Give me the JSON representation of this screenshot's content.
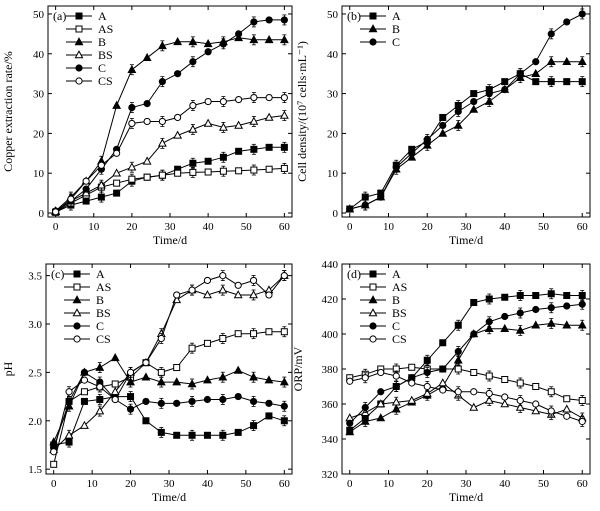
{
  "chart_data": [
    {
      "type": "line",
      "panel_label": "(a)",
      "xlabel": "Time/d",
      "ylabel": "Copper extraction rate/%",
      "xlim": [
        -2,
        62
      ],
      "ylim": [
        -1,
        52
      ],
      "xticks": [
        0,
        10,
        20,
        30,
        40,
        50,
        60
      ],
      "yticks": [
        0,
        10,
        20,
        30,
        40,
        50
      ],
      "grid": false,
      "legend": "top-left",
      "x": [
        0,
        4,
        8,
        12,
        16,
        20,
        24,
        28,
        32,
        36,
        40,
        44,
        48,
        52,
        56,
        60
      ],
      "series": [
        {
          "name": "A",
          "marker": "square-filled",
          "values": [
            0.2,
            2.0,
            3.0,
            4.0,
            5.0,
            8.0,
            9.0,
            9.5,
            11.0,
            12.5,
            13.0,
            14.0,
            15.5,
            16.0,
            16.5,
            16.5
          ]
        },
        {
          "name": "AS",
          "marker": "square-open",
          "values": [
            0.2,
            2.5,
            4.5,
            6.5,
            7.5,
            8.5,
            9.0,
            9.5,
            10.0,
            10.2,
            10.3,
            10.5,
            10.6,
            10.8,
            11.0,
            11.2
          ]
        },
        {
          "name": "B",
          "marker": "triangle-filled",
          "values": [
            0.5,
            4.0,
            8.0,
            13.0,
            27.0,
            36.0,
            39.0,
            42.0,
            43.0,
            43.0,
            42.5,
            43.0,
            44.0,
            43.5,
            43.5,
            43.5
          ]
        },
        {
          "name": "BS",
          "marker": "triangle-open",
          "values": [
            0.3,
            3.0,
            5.0,
            7.0,
            10.0,
            11.5,
            13.0,
            17.5,
            19.5,
            21.0,
            22.5,
            21.5,
            22.0,
            23.0,
            24.0,
            24.5
          ]
        },
        {
          "name": "C",
          "marker": "circle-filled",
          "values": [
            0.5,
            3.0,
            6.0,
            11.0,
            16.0,
            26.5,
            27.5,
            33.0,
            35.0,
            38.0,
            40.5,
            42.5,
            45.0,
            48.0,
            48.5,
            48.5
          ]
        },
        {
          "name": "CS",
          "marker": "circle-open",
          "values": [
            0.3,
            3.5,
            8.0,
            12.0,
            15.0,
            22.5,
            23.0,
            23.0,
            24.0,
            27.0,
            28.0,
            28.0,
            28.5,
            29.0,
            29.0,
            29.0
          ]
        }
      ]
    },
    {
      "type": "line",
      "panel_label": "(b)",
      "xlabel": "Time/d",
      "ylabel": "Cell density/(10⁷ cells·mL⁻¹)",
      "xlim": [
        -2,
        62
      ],
      "ylim": [
        -1,
        52
      ],
      "xticks": [
        0,
        10,
        20,
        30,
        40,
        50,
        60
      ],
      "yticks": [
        0,
        10,
        20,
        30,
        40,
        50
      ],
      "grid": false,
      "legend": "top-left",
      "x": [
        0,
        4,
        8,
        12,
        16,
        20,
        24,
        28,
        32,
        36,
        40,
        44,
        48,
        52,
        56,
        60
      ],
      "series": [
        {
          "name": "A",
          "marker": "square-filled",
          "values": [
            1.0,
            4.0,
            5.0,
            12.0,
            16.0,
            18.0,
            24.0,
            27.0,
            30.0,
            31.0,
            33.0,
            35.0,
            33.0,
            33.0,
            33.0,
            33.0
          ]
        },
        {
          "name": "B",
          "marker": "triangle-filled",
          "values": [
            1.0,
            2.0,
            4.0,
            11.0,
            14.0,
            17.0,
            20.0,
            22.0,
            26.0,
            28.0,
            31.0,
            34.0,
            35.0,
            38.0,
            38.0,
            38.0
          ]
        },
        {
          "name": "C",
          "marker": "circle-filled",
          "values": [
            1.0,
            2.0,
            4.0,
            11.5,
            15.0,
            18.5,
            22.0,
            25.5,
            28.0,
            30.0,
            31.0,
            35.0,
            38.0,
            45.0,
            48.0,
            50.0
          ]
        }
      ]
    },
    {
      "type": "line",
      "panel_label": "(c)",
      "xlabel": "Time/d",
      "ylabel": "pH",
      "xlim": [
        -2,
        62
      ],
      "ylim": [
        1.45,
        3.62
      ],
      "xticks": [
        0,
        10,
        20,
        30,
        40,
        50,
        60
      ],
      "yticks": [
        1.5,
        2.0,
        2.5,
        3.0,
        3.5
      ],
      "ytick_labels": [
        "1.5",
        "2.0",
        "2.5",
        "3.0",
        "3.5"
      ],
      "grid": false,
      "legend": "top-left",
      "x": [
        0,
        4,
        8,
        12,
        16,
        20,
        24,
        28,
        32,
        36,
        40,
        44,
        48,
        52,
        56,
        60
      ],
      "series": [
        {
          "name": "A",
          "marker": "square-filled",
          "values": [
            1.75,
            1.78,
            2.2,
            2.22,
            2.25,
            2.25,
            2.0,
            1.88,
            1.85,
            1.85,
            1.85,
            1.85,
            1.88,
            1.95,
            2.05,
            2.0
          ]
        },
        {
          "name": "AS",
          "marker": "square-open",
          "values": [
            1.55,
            2.2,
            2.3,
            2.35,
            2.38,
            2.45,
            2.6,
            2.5,
            2.55,
            2.75,
            2.8,
            2.85,
            2.9,
            2.9,
            2.92,
            2.92
          ]
        },
        {
          "name": "B",
          "marker": "triangle-filled",
          "values": [
            1.78,
            2.15,
            2.5,
            2.55,
            2.65,
            2.4,
            2.45,
            2.4,
            2.4,
            2.38,
            2.42,
            2.45,
            2.52,
            2.45,
            2.42,
            2.4
          ]
        },
        {
          "name": "BS",
          "marker": "triangle-open",
          "values": [
            1.7,
            1.85,
            1.95,
            2.1,
            2.3,
            2.5,
            2.6,
            2.9,
            3.25,
            3.35,
            3.3,
            3.35,
            3.3,
            3.3,
            3.35,
            3.5
          ]
        },
        {
          "name": "C",
          "marker": "circle-filled",
          "values": [
            1.72,
            2.2,
            2.5,
            2.4,
            2.22,
            2.12,
            2.2,
            2.18,
            2.18,
            2.2,
            2.22,
            2.22,
            2.25,
            2.2,
            2.18,
            2.15
          ]
        },
        {
          "name": "CS",
          "marker": "circle-open",
          "values": [
            1.68,
            2.3,
            2.42,
            2.35,
            2.22,
            2.5,
            2.6,
            2.85,
            3.3,
            3.35,
            3.45,
            3.5,
            3.4,
            3.45,
            3.3,
            3.5
          ]
        }
      ]
    },
    {
      "type": "line",
      "panel_label": "(d)",
      "xlabel": "Time/d",
      "ylabel": "ORP/mV",
      "xlim": [
        -2,
        62
      ],
      "ylim": [
        320,
        440
      ],
      "xticks": [
        0,
        10,
        20,
        30,
        40,
        50,
        60
      ],
      "yticks": [
        320,
        340,
        360,
        380,
        400,
        420,
        440
      ],
      "grid": false,
      "legend": "top-left",
      "x": [
        0,
        4,
        8,
        12,
        16,
        20,
        24,
        28,
        32,
        36,
        40,
        44,
        48,
        52,
        56,
        60
      ],
      "series": [
        {
          "name": "A",
          "marker": "square-filled",
          "values": [
            345,
            352,
            360,
            370,
            375,
            385,
            395,
            405,
            418,
            420,
            421,
            422,
            422,
            423,
            422,
            422
          ]
        },
        {
          "name": "AS",
          "marker": "square-open",
          "values": [
            375,
            377,
            380,
            380,
            381,
            380,
            380,
            380,
            378,
            376,
            374,
            372,
            370,
            367,
            363,
            362
          ]
        },
        {
          "name": "B",
          "marker": "triangle-filled",
          "values": [
            344,
            350,
            352,
            357,
            361,
            365,
            370,
            385,
            400,
            403,
            403,
            402,
            405,
            406,
            405,
            405
          ]
        },
        {
          "name": "BS",
          "marker": "triangle-open",
          "values": [
            352,
            355,
            360,
            361,
            362,
            366,
            372,
            365,
            358,
            362,
            360,
            358,
            356,
            354,
            357,
            352
          ]
        },
        {
          "name": "C",
          "marker": "circle-filled",
          "values": [
            349,
            358,
            367,
            370,
            375,
            378,
            380,
            390,
            400,
            407,
            410,
            412,
            414,
            415,
            416,
            417
          ]
        },
        {
          "name": "CS",
          "marker": "circle-open",
          "values": [
            373,
            375,
            378,
            376,
            372,
            370,
            368,
            367,
            367,
            366,
            364,
            362,
            360,
            356,
            353,
            350
          ]
        }
      ]
    }
  ]
}
